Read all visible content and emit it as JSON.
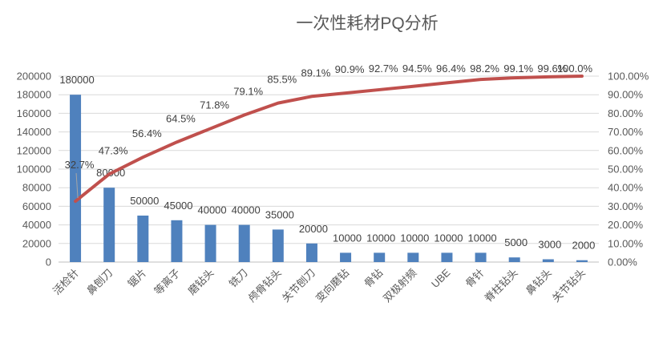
{
  "title": "一次性耗材PQ分析",
  "colors": {
    "bar": "#4F81BD",
    "line": "#C0504D",
    "grid": "#D9D9D9",
    "axis_line": "#BFBFBF",
    "leader_line": "#A6A6A6",
    "data_label_text": "#404040",
    "axis_text": "#595959",
    "title_text": "#595959",
    "background": "#FFFFFF"
  },
  "chart_data": {
    "type": "pareto (bar + line combo)",
    "title": "一次性耗材PQ分析",
    "categories": [
      "活检针",
      "鼻刨刀",
      "锯片",
      "等离子",
      "磨钻头",
      "铣刀",
      "颅骨钻头",
      "关节刨刀",
      "变向磨钻",
      "骨钻",
      "双极射频",
      "UBE",
      "骨针",
      "脊柱钻头",
      "鼻钻头",
      "关节钻头"
    ],
    "series": [
      {
        "type": "bar",
        "axis": "left",
        "values": [
          180000,
          80000,
          50000,
          45000,
          40000,
          40000,
          35000,
          20000,
          10000,
          10000,
          10000,
          10000,
          10000,
          5000,
          3000,
          2000
        ],
        "labels": [
          "180000",
          "80000",
          "50000",
          "45000",
          "40000",
          "40000",
          "35000",
          "20000",
          "10000",
          "10000",
          "10000",
          "10000",
          "10000",
          "5000",
          "3000",
          "2000"
        ]
      },
      {
        "type": "line",
        "axis": "right",
        "values": [
          32.7,
          47.3,
          56.4,
          64.5,
          71.8,
          79.1,
          85.5,
          89.1,
          90.9,
          92.7,
          94.5,
          96.4,
          98.2,
          99.1,
          99.6,
          100.0
        ],
        "labels": [
          "32.7%",
          "47.3%",
          "56.4%",
          "64.5%",
          "71.8%",
          "79.1%",
          "85.5%",
          "89.1%",
          "90.9%",
          "92.7%",
          "94.5%",
          "96.4%",
          "98.2%",
          "99.1%",
          "99.6%",
          "100.0%"
        ]
      }
    ],
    "left_axis": {
      "min": 0,
      "max": 200000,
      "step": 20000,
      "ticks": [
        "0",
        "20000",
        "40000",
        "60000",
        "80000",
        "100000",
        "120000",
        "140000",
        "160000",
        "180000",
        "200000"
      ]
    },
    "right_axis": {
      "min": 0,
      "max": 100,
      "step": 10,
      "ticks": [
        "0.00%",
        "10.00%",
        "20.00%",
        "30.00%",
        "40.00%",
        "50.00%",
        "60.00%",
        "70.00%",
        "80.00%",
        "90.00%",
        "100.00%"
      ]
    },
    "grid": "horizontal",
    "legend": "none",
    "xlabel": "",
    "ylabel": ""
  }
}
